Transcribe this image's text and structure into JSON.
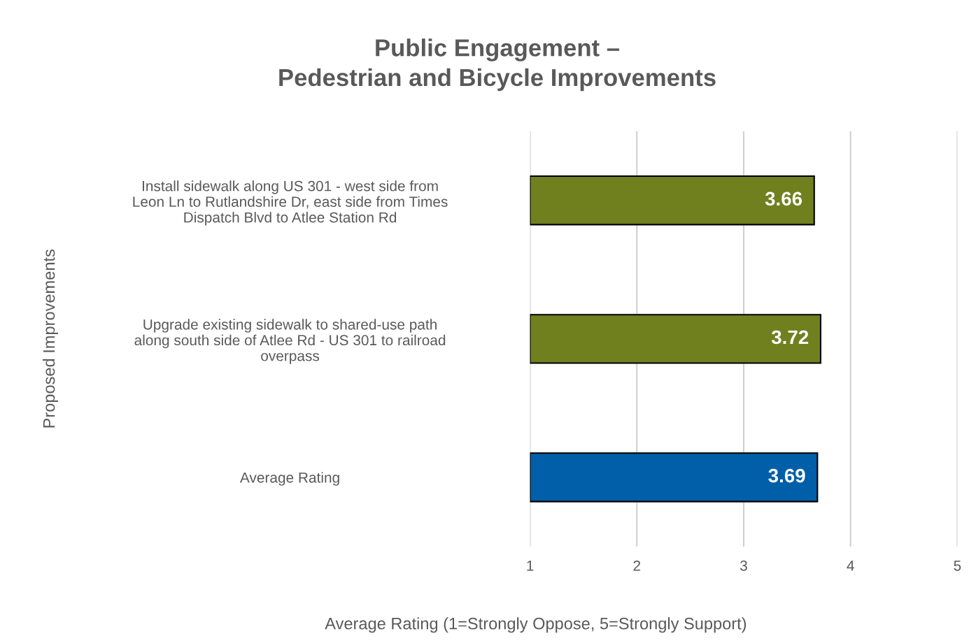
{
  "chart_data": {
    "type": "bar",
    "orientation": "horizontal",
    "title": "Public Engagement –\nPedestrian and Bicycle Improvements",
    "xlabel": "Average Rating (1=Strongly Oppose, 5=Strongly Support)",
    "ylabel": "Proposed Improvements",
    "categories": [
      "Install sidewalk along US 301 - west side from\nLeon Ln to Rutlandshire Dr, east side from Times\nDispatch Blvd to Atlee Station Rd",
      "Upgrade existing sidewalk to shared-use path\nalong south side of Atlee Rd - US 301 to railroad\noverpass",
      "Average Rating"
    ],
    "values": [
      3.66,
      3.72,
      3.69
    ],
    "colors": [
      "#71801f",
      "#71801f",
      "#005fa8"
    ],
    "xlim": [
      1,
      5
    ],
    "xticks": [
      1,
      2,
      3,
      4,
      5
    ],
    "grid": "x",
    "data_labels": true
  }
}
